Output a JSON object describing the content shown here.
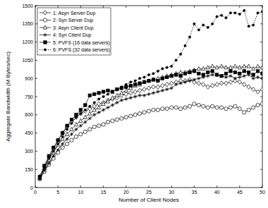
{
  "chart_data": {
    "type": "line",
    "x_label": "Number of Client Nodes",
    "y_label": "Aggregate Bandwidth (M Bytes/sec)",
    "x": [
      1,
      2,
      3,
      4,
      5,
      6,
      7,
      8,
      9,
      10,
      11,
      12,
      13,
      14,
      15,
      16,
      17,
      18,
      19,
      20,
      21,
      22,
      23,
      24,
      25,
      26,
      27,
      28,
      29,
      30,
      31,
      32,
      33,
      34,
      35,
      36,
      37,
      38,
      39,
      40,
      41,
      42,
      43,
      44,
      45,
      46,
      47,
      48,
      49,
      50
    ],
    "xlim": [
      0,
      50
    ],
    "xticks": [
      0,
      5,
      10,
      15,
      20,
      25,
      30,
      35,
      40,
      45,
      50
    ],
    "ylim": [
      0,
      1500
    ],
    "yticks": [
      0,
      150,
      300,
      450,
      600,
      750,
      900,
      1050,
      1200,
      1350,
      1500
    ],
    "grid": false,
    "legend": "upper left",
    "series": [
      {
        "name": "1:  Asyn Server Dup",
        "color": "#000000",
        "marker": "diamond",
        "line_style": "solid",
        "values": [
          90,
          170,
          250,
          320,
          390,
          450,
          500,
          540,
          580,
          610,
          630,
          650,
          670,
          690,
          700,
          720,
          730,
          740,
          760,
          770,
          780,
          790,
          800,
          810,
          820,
          830,
          830,
          840,
          850,
          860,
          870,
          880,
          880,
          890,
          870,
          860,
          850,
          830,
          840,
          850,
          860,
          860,
          870,
          880,
          870,
          850,
          830,
          810,
          790,
          810
        ]
      },
      {
        "name": "2:  Syn Server Dup",
        "color": "#000000",
        "marker": "circle",
        "line_style": "solid",
        "values": [
          70,
          130,
          190,
          240,
          290,
          330,
          360,
          390,
          420,
          440,
          460,
          480,
          500,
          510,
          520,
          540,
          550,
          560,
          570,
          580,
          590,
          600,
          610,
          620,
          630,
          640,
          640,
          650,
          650,
          660,
          660,
          650,
          660,
          670,
          690,
          680,
          670,
          660,
          670,
          660,
          660,
          650,
          660,
          670,
          650,
          620,
          640,
          660,
          680,
          690
        ]
      },
      {
        "name": "3:  Asyn Client Dup",
        "color": "#000000",
        "marker": "triangle",
        "line_style": "solid",
        "values": [
          80,
          160,
          230,
          290,
          350,
          400,
          440,
          480,
          520,
          550,
          580,
          610,
          640,
          660,
          690,
          710,
          740,
          760,
          780,
          800,
          820,
          840,
          850,
          870,
          880,
          890,
          900,
          910,
          920,
          930,
          940,
          950,
          950,
          960,
          970,
          980,
          980,
          990,
          1000,
          990,
          1000,
          990,
          990,
          1000,
          990,
          1000,
          1000,
          980,
          1000,
          990
        ]
      },
      {
        "name": "4:  Syn Client Dup",
        "color": "#000000",
        "marker": "star",
        "line_style": "solid",
        "values": [
          70,
          140,
          200,
          260,
          310,
          360,
          400,
          440,
          480,
          510,
          540,
          570,
          600,
          620,
          640,
          660,
          680,
          700,
          720,
          730,
          740,
          750,
          760,
          760,
          770,
          780,
          790,
          800,
          810,
          820,
          850,
          860,
          870,
          880,
          890,
          900,
          910,
          920,
          930,
          930,
          920,
          910,
          920,
          900,
          910,
          920,
          930,
          900,
          910,
          900
        ]
      },
      {
        "name": "5:  PVFS (16 data servers)",
        "color": "#000000",
        "marker": "square",
        "line_style": "solid",
        "values": [
          90,
          180,
          260,
          330,
          390,
          450,
          510,
          560,
          600,
          640,
          680,
          760,
          770,
          780,
          790,
          800,
          790,
          810,
          820,
          830,
          840,
          850,
          860,
          870,
          880,
          890,
          880,
          900,
          910,
          920,
          930,
          920,
          940,
          950,
          960,
          940,
          930,
          950,
          960,
          930,
          920,
          940,
          960,
          950,
          940,
          960,
          950,
          930,
          960,
          940
        ]
      },
      {
        "name": "6:  PVFS (32 data servers)",
        "color": "#000000",
        "marker": "dot",
        "line_style": "dotted",
        "values": [
          80,
          160,
          240,
          300,
          360,
          420,
          480,
          530,
          580,
          610,
          640,
          670,
          700,
          730,
          750,
          770,
          790,
          810,
          830,
          850,
          870,
          880,
          900,
          910,
          930,
          940,
          960,
          980,
          990,
          1000,
          1050,
          1100,
          1170,
          1240,
          1350,
          1300,
          1340,
          1320,
          1350,
          1410,
          1420,
          1400,
          1440,
          1440,
          1430,
          1460,
          1330,
          1340,
          1440,
          1450
        ]
      }
    ]
  }
}
